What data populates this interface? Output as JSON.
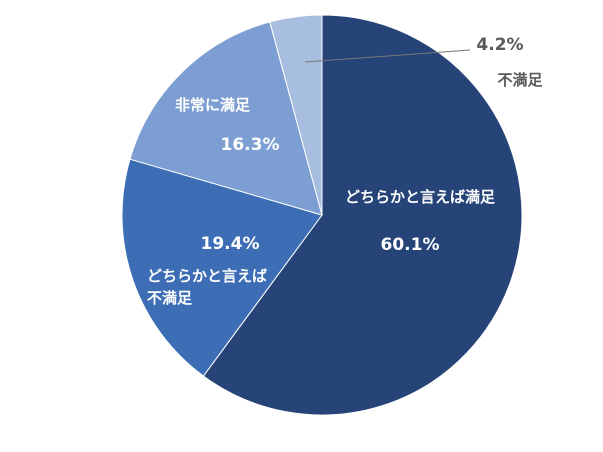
{
  "chart_data": {
    "type": "pie",
    "categories": [
      "どちらかと言えば満足",
      "どちらかと言えば\n不満足",
      "非常に満足",
      "不満足"
    ],
    "values": [
      60.1,
      19.4,
      16.3,
      4.2
    ],
    "value_labels": [
      "60.1%",
      "19.4%",
      "16.3%",
      "4.2%"
    ],
    "colors": [
      "#264478",
      "#3c6db5",
      "#7d9ed2",
      "#a8bee0"
    ]
  }
}
